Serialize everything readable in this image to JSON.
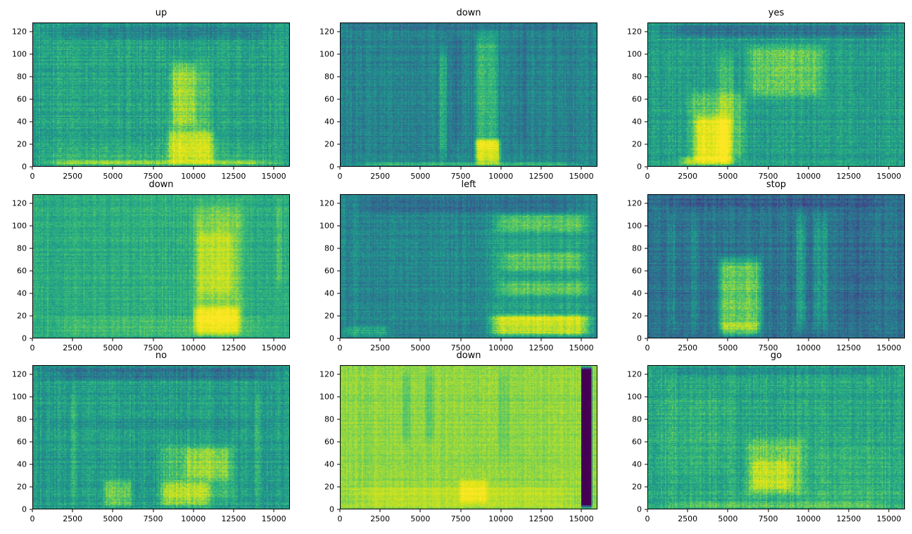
{
  "figure": {
    "background": "#ffffff",
    "colormap": "viridis",
    "description": "3x3 grid of audio spectrograms labeled with spoken-command words"
  },
  "chart_data": [
    {
      "type": "heatmap",
      "title": "up",
      "xlim": [
        0,
        16000
      ],
      "ylim": [
        0,
        128
      ],
      "xticks": [
        0,
        2500,
        5000,
        7500,
        10000,
        12500,
        15000
      ],
      "yticks": [
        0,
        20,
        40,
        60,
        80,
        100,
        120
      ],
      "base": 0.52,
      "noise": 0.1,
      "seed": 1,
      "features": [
        {
          "x0": 0,
          "x1": 16000,
          "y0": 112,
          "y1": 128,
          "v": -0.12
        },
        {
          "x0": 0,
          "x1": 16000,
          "y0": 0,
          "y1": 6,
          "v": 0.18
        },
        {
          "x0": 8200,
          "x1": 11400,
          "y0": 0,
          "y1": 100,
          "v": 0.12
        },
        {
          "x0": 8200,
          "x1": 11600,
          "y0": 0,
          "y1": 34,
          "v": 0.22
        },
        {
          "x0": 8600,
          "x1": 10300,
          "y0": 30,
          "y1": 96,
          "v": 0.14
        },
        {
          "x0": 0,
          "x1": 16000,
          "y0": 0,
          "y1": 20,
          "v": 0.05
        }
      ]
    },
    {
      "type": "heatmap",
      "title": "down",
      "xlim": [
        0,
        16000
      ],
      "ylim": [
        0,
        128
      ],
      "xticks": [
        0,
        2500,
        5000,
        7500,
        10000,
        12500,
        15000
      ],
      "yticks": [
        0,
        20,
        40,
        60,
        80,
        100,
        120
      ],
      "base": 0.4,
      "noise": 0.09,
      "seed": 2,
      "features": [
        {
          "x0": 0,
          "x1": 16000,
          "y0": 0,
          "y1": 4,
          "v": 0.22
        },
        {
          "x0": 8300,
          "x1": 9900,
          "y0": 0,
          "y1": 128,
          "v": 0.18
        },
        {
          "x0": 8300,
          "x1": 10100,
          "y0": 0,
          "y1": 26,
          "v": 0.38
        },
        {
          "x0": 6100,
          "x1": 6700,
          "y0": 0,
          "y1": 112,
          "v": 0.14
        },
        {
          "x0": 6900,
          "x1": 7600,
          "y0": 15,
          "y1": 128,
          "v": -0.07
        },
        {
          "x0": 10900,
          "x1": 11700,
          "y0": 15,
          "y1": 128,
          "v": -0.05
        },
        {
          "x0": 0,
          "x1": 16000,
          "y0": 120,
          "y1": 128,
          "v": -0.05
        }
      ]
    },
    {
      "type": "heatmap",
      "title": "yes",
      "xlim": [
        0,
        16000
      ],
      "ylim": [
        0,
        128
      ],
      "xticks": [
        0,
        2500,
        5000,
        7500,
        10000,
        12500,
        15000
      ],
      "yticks": [
        0,
        20,
        40,
        60,
        80,
        100,
        120
      ],
      "base": 0.5,
      "noise": 0.1,
      "seed": 3,
      "features": [
        {
          "x0": 0,
          "x1": 16000,
          "y0": 114,
          "y1": 128,
          "v": -0.15
        },
        {
          "x0": 2300,
          "x1": 6300,
          "y0": 0,
          "y1": 72,
          "v": 0.16
        },
        {
          "x0": 2800,
          "x1": 5300,
          "y0": 0,
          "y1": 48,
          "v": 0.26
        },
        {
          "x0": 4300,
          "x1": 5400,
          "y0": 0,
          "y1": 108,
          "v": 0.12
        },
        {
          "x0": 5900,
          "x1": 11300,
          "y0": 58,
          "y1": 112,
          "v": 0.18
        },
        {
          "x0": 1800,
          "x1": 5600,
          "y0": 0,
          "y1": 10,
          "v": 0.22
        }
      ]
    },
    {
      "type": "heatmap",
      "title": "down",
      "xlim": [
        0,
        16000
      ],
      "ylim": [
        0,
        128
      ],
      "xticks": [
        0,
        2500,
        5000,
        7500,
        10000,
        12500,
        15000
      ],
      "yticks": [
        0,
        20,
        40,
        60,
        80,
        100,
        120
      ],
      "base": 0.56,
      "noise": 0.08,
      "seed": 4,
      "features": [
        {
          "x0": 0,
          "x1": 16000,
          "y0": 0,
          "y1": 20,
          "v": 0.07
        },
        {
          "x0": 9800,
          "x1": 13300,
          "y0": 0,
          "y1": 128,
          "v": 0.16
        },
        {
          "x0": 9900,
          "x1": 13100,
          "y0": 0,
          "y1": 30,
          "v": 0.26
        },
        {
          "x0": 10100,
          "x1": 12700,
          "y0": 34,
          "y1": 100,
          "v": 0.1
        },
        {
          "x0": 15200,
          "x1": 15600,
          "y0": 40,
          "y1": 128,
          "v": 0.08
        }
      ]
    },
    {
      "type": "heatmap",
      "title": "left",
      "xlim": [
        0,
        16000
      ],
      "ylim": [
        0,
        128
      ],
      "xticks": [
        0,
        2500,
        5000,
        7500,
        10000,
        12500,
        15000
      ],
      "yticks": [
        0,
        20,
        40,
        60,
        80,
        100,
        120
      ],
      "base": 0.42,
      "noise": 0.09,
      "seed": 5,
      "features": [
        {
          "x0": 0,
          "x1": 16000,
          "y0": 110,
          "y1": 128,
          "v": -0.1
        },
        {
          "x0": 8900,
          "x1": 16000,
          "y0": 0,
          "y1": 120,
          "v": 0.1
        },
        {
          "x0": 9400,
          "x1": 15900,
          "y0": 94,
          "y1": 112,
          "v": 0.16
        },
        {
          "x0": 9700,
          "x1": 15600,
          "y0": 58,
          "y1": 78,
          "v": 0.14
        },
        {
          "x0": 9500,
          "x1": 16000,
          "y0": 36,
          "y1": 52,
          "v": 0.14
        },
        {
          "x0": 9000,
          "x1": 16000,
          "y0": 0,
          "y1": 22,
          "v": 0.38
        },
        {
          "x0": 0,
          "x1": 3200,
          "y0": 0,
          "y1": 12,
          "v": 0.14
        }
      ]
    },
    {
      "type": "heatmap",
      "title": "stop",
      "xlim": [
        0,
        16000
      ],
      "ylim": [
        0,
        128
      ],
      "xticks": [
        0,
        2500,
        5000,
        7500,
        10000,
        12500,
        15000
      ],
      "yticks": [
        0,
        20,
        40,
        60,
        80,
        100,
        120
      ],
      "base": 0.34,
      "noise": 0.1,
      "seed": 6,
      "features": [
        {
          "x0": 0,
          "x1": 16000,
          "y0": 114,
          "y1": 128,
          "v": -0.07
        },
        {
          "x0": 4200,
          "x1": 7300,
          "y0": 0,
          "y1": 76,
          "v": 0.34
        },
        {
          "x0": 4400,
          "x1": 7100,
          "y0": 0,
          "y1": 14,
          "v": 0.18
        },
        {
          "x0": 9200,
          "x1": 9900,
          "y0": 0,
          "y1": 118,
          "v": 0.16
        },
        {
          "x0": 10300,
          "x1": 11300,
          "y0": 0,
          "y1": 118,
          "v": 0.13
        },
        {
          "x0": 1200,
          "x1": 1700,
          "y0": 0,
          "y1": 118,
          "v": 0.07
        },
        {
          "x0": 2600,
          "x1": 3300,
          "y0": 0,
          "y1": 118,
          "v": 0.07
        },
        {
          "x0": 12100,
          "x1": 13400,
          "y0": 0,
          "y1": 128,
          "v": -0.05
        }
      ]
    },
    {
      "type": "heatmap",
      "title": "no",
      "xlim": [
        0,
        16000
      ],
      "ylim": [
        0,
        128
      ],
      "xticks": [
        0,
        2500,
        5000,
        7500,
        10000,
        12500,
        15000
      ],
      "yticks": [
        0,
        20,
        40,
        60,
        80,
        100,
        120
      ],
      "base": 0.5,
      "noise": 0.1,
      "seed": 7,
      "features": [
        {
          "x0": 0,
          "x1": 16000,
          "y0": 114,
          "y1": 128,
          "v": -0.14
        },
        {
          "x0": 7600,
          "x1": 12900,
          "y0": 0,
          "y1": 62,
          "v": 0.13
        },
        {
          "x0": 9200,
          "x1": 12600,
          "y0": 24,
          "y1": 56,
          "v": 0.13
        },
        {
          "x0": 7800,
          "x1": 11200,
          "y0": 0,
          "y1": 26,
          "v": 0.18
        },
        {
          "x0": 4300,
          "x1": 6300,
          "y0": 0,
          "y1": 28,
          "v": 0.18
        },
        {
          "x0": 2300,
          "x1": 2800,
          "y0": 0,
          "y1": 110,
          "v": 0.07
        },
        {
          "x0": 13800,
          "x1": 14300,
          "y0": 0,
          "y1": 110,
          "v": 0.07
        },
        {
          "x0": 0,
          "x1": 16000,
          "y0": 70,
          "y1": 80,
          "v": -0.05
        }
      ]
    },
    {
      "type": "heatmap",
      "title": "down",
      "xlim": [
        0,
        16000
      ],
      "ylim": [
        0,
        128
      ],
      "xticks": [
        0,
        2500,
        5000,
        7500,
        10000,
        12500,
        15000
      ],
      "yticks": [
        0,
        20,
        40,
        60,
        80,
        100,
        120
      ],
      "base": 0.75,
      "noise": 0.06,
      "seed": 8,
      "features": [
        {
          "x0": 15000,
          "x1": 15700,
          "y0": 0,
          "y1": 128,
          "v": -0.85,
          "s": 0.02
        },
        {
          "x0": 0,
          "x1": 15000,
          "y0": 0,
          "y1": 22,
          "v": 0.07
        },
        {
          "x0": 7300,
          "x1": 9300,
          "y0": 3,
          "y1": 28,
          "v": 0.15
        },
        {
          "x0": 3800,
          "x1": 4400,
          "y0": 55,
          "y1": 128,
          "v": -0.07
        },
        {
          "x0": 5200,
          "x1": 5900,
          "y0": 55,
          "y1": 128,
          "v": -0.07
        },
        {
          "x0": 9800,
          "x1": 10600,
          "y0": 40,
          "y1": 128,
          "v": -0.05
        }
      ]
    },
    {
      "type": "heatmap",
      "title": "go",
      "xlim": [
        0,
        16000
      ],
      "ylim": [
        0,
        128
      ],
      "xticks": [
        0,
        2500,
        5000,
        7500,
        10000,
        12500,
        15000
      ],
      "yticks": [
        0,
        20,
        40,
        60,
        80,
        100,
        120
      ],
      "base": 0.54,
      "noise": 0.1,
      "seed": 9,
      "features": [
        {
          "x0": 0,
          "x1": 16000,
          "y0": 118,
          "y1": 128,
          "v": -0.1
        },
        {
          "x0": 0,
          "x1": 5700,
          "y0": 20,
          "y1": 112,
          "v": 0.04
        },
        {
          "x0": 5900,
          "x1": 10000,
          "y0": 8,
          "y1": 66,
          "v": 0.16
        },
        {
          "x0": 6300,
          "x1": 9100,
          "y0": 14,
          "y1": 46,
          "v": 0.14
        },
        {
          "x0": 0,
          "x1": 16000,
          "y0": 0,
          "y1": 8,
          "v": 0.12
        },
        {
          "x0": 9800,
          "x1": 16000,
          "y0": 0,
          "y1": 60,
          "v": 0.04
        }
      ]
    }
  ]
}
